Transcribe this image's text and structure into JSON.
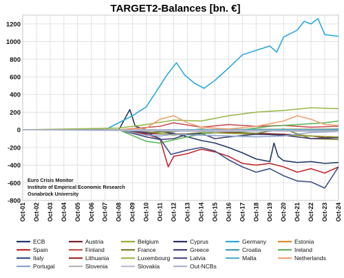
{
  "chart_data": {
    "type": "line",
    "title": "TARGET2-Balances [bn. €]",
    "xlabel": "",
    "ylabel": "",
    "ylim": [
      -800,
      1300
    ],
    "yticks": [
      -800,
      -600,
      -400,
      -200,
      0,
      200,
      400,
      600,
      800,
      1000,
      1200
    ],
    "x_ticks": [
      "Oct-01",
      "Oct-02",
      "Oct-03",
      "Oct-04",
      "Oct-05",
      "Oct-06",
      "Oct-07",
      "Oct-08",
      "Oct-09",
      "Oct-10",
      "Oct-11",
      "Oct-12",
      "Oct-13",
      "Oct-14",
      "Oct-15",
      "Oct-16",
      "Oct-17",
      "Oct-18",
      "Oct-19",
      "Oct-20",
      "Oct-21",
      "Oct-22",
      "Oct-23",
      "Oct-24"
    ],
    "x_years": [
      2001,
      2002,
      2003,
      2004,
      2005,
      2006,
      2007,
      2008,
      2009,
      2010,
      2011,
      2012,
      2013,
      2014,
      2015,
      2016,
      2017,
      2018,
      2019,
      2020,
      2021,
      2022,
      2023,
      2024
    ],
    "grid": true,
    "legend_position": "bottom",
    "annotation": [
      "Euro Crisis Monitor",
      "Institute of Empirical Economic Research",
      "Osnabrück University"
    ],
    "series": [
      {
        "name": "ECB",
        "color": "#1f3864",
        "x": [
          2001,
          2008,
          2008.8,
          2009.2,
          2010,
          2011,
          2012,
          2013,
          2014,
          2015,
          2016,
          2017,
          2018,
          2019,
          2019.3,
          2019.6,
          2020,
          2021,
          2022,
          2023,
          2024
        ],
        "y": [
          0,
          0,
          230,
          40,
          0,
          -20,
          -40,
          -80,
          -120,
          -150,
          -200,
          -260,
          -330,
          -360,
          -150,
          -300,
          -350,
          -370,
          -360,
          -380,
          -370
        ]
      },
      {
        "name": "Austria",
        "color": "#7b1f2b",
        "x": [
          2001,
          2008,
          2010,
          2012,
          2014,
          2016,
          2018,
          2020,
          2022,
          2023,
          2024
        ],
        "y": [
          0,
          0,
          -40,
          -50,
          -40,
          -30,
          -40,
          -50,
          -70,
          -90,
          -80
        ]
      },
      {
        "name": "Belgium",
        "color": "#9aab3a",
        "x": [
          2001,
          2008,
          2010,
          2012,
          2014,
          2016,
          2018,
          2020,
          2022,
          2024
        ],
        "y": [
          0,
          0,
          -20,
          -60,
          -30,
          -40,
          -50,
          -60,
          -70,
          -80
        ]
      },
      {
        "name": "Cyprus",
        "color": "#2e2e5e",
        "x": [
          2001,
          2008,
          2012,
          2016,
          2020,
          2024
        ],
        "y": [
          0,
          0,
          -10,
          -5,
          -10,
          -20
        ]
      },
      {
        "name": "Germany",
        "color": "#2aa7dc",
        "x": [
          2001,
          2007,
          2008,
          2009,
          2010,
          2011,
          2011.5,
          2012.2,
          2012.8,
          2013.5,
          2014.2,
          2015,
          2016,
          2017,
          2018,
          2019,
          2019.5,
          2020,
          2021,
          2021.5,
          2022,
          2022.5,
          2023,
          2024
        ],
        "y": [
          0,
          0,
          80,
          160,
          260,
          500,
          620,
          760,
          620,
          530,
          470,
          560,
          700,
          850,
          900,
          950,
          880,
          1050,
          1130,
          1230,
          1200,
          1260,
          1080,
          1060
        ]
      },
      {
        "name": "Estonia",
        "color": "#e08a2c",
        "x": [
          2001,
          2011,
          2016,
          2024
        ],
        "y": [
          0,
          0,
          5,
          10
        ]
      },
      {
        "name": "Spain",
        "color": "#c0282d",
        "x": [
          2001,
          2008,
          2010,
          2011,
          2011.6,
          2012,
          2013,
          2014,
          2015,
          2016,
          2017,
          2018,
          2019,
          2020,
          2021,
          2022,
          2023,
          2024
        ],
        "y": [
          0,
          0,
          -50,
          -100,
          -420,
          -300,
          -270,
          -220,
          -250,
          -300,
          -380,
          -400,
          -380,
          -420,
          -480,
          -440,
          -490,
          -420
        ]
      },
      {
        "name": "Finland",
        "color": "#c65050",
        "x": [
          2001,
          2008,
          2011,
          2012,
          2014,
          2016,
          2018,
          2020,
          2022,
          2024
        ],
        "y": [
          0,
          0,
          40,
          80,
          30,
          60,
          40,
          50,
          30,
          40
        ]
      },
      {
        "name": "France",
        "color": "#7d7d32",
        "x": [
          2001,
          2008,
          2010,
          2012,
          2014,
          2016,
          2018,
          2020,
          2022,
          2024
        ],
        "y": [
          0,
          0,
          -30,
          -20,
          10,
          -20,
          -40,
          10,
          -100,
          -110
        ]
      },
      {
        "name": "Greece",
        "color": "#3e3e6e",
        "x": [
          2001,
          2008,
          2010,
          2011,
          2012,
          2013,
          2014,
          2015,
          2016,
          2018,
          2020,
          2022,
          2024
        ],
        "y": [
          0,
          0,
          -80,
          -110,
          -100,
          -50,
          -40,
          -100,
          -80,
          -50,
          -60,
          -100,
          -90
        ]
      },
      {
        "name": "Croatia",
        "color": "#3a9fae",
        "x": [
          2023,
          2024
        ],
        "y": [
          0,
          10
        ]
      },
      {
        "name": "Ireland",
        "color": "#5fb65b",
        "x": [
          2001,
          2008,
          2010,
          2011,
          2013,
          2015,
          2017,
          2019,
          2021,
          2023,
          2024
        ],
        "y": [
          0,
          0,
          -130,
          -150,
          -80,
          -20,
          0,
          40,
          60,
          80,
          100
        ]
      },
      {
        "name": "Italy",
        "color": "#3b4f86",
        "x": [
          2001,
          2008,
          2010,
          2011,
          2011.8,
          2012,
          2013,
          2014,
          2015,
          2016,
          2017,
          2018,
          2019,
          2020,
          2021,
          2022,
          2023,
          2024
        ],
        "y": [
          0,
          0,
          -30,
          -100,
          -280,
          -270,
          -230,
          -200,
          -240,
          -340,
          -420,
          -480,
          -440,
          -520,
          -580,
          -590,
          -660,
          -420
        ]
      },
      {
        "name": "Lithuania",
        "color": "#a03030",
        "x": [
          2015,
          2024
        ],
        "y": [
          0,
          -10
        ]
      },
      {
        "name": "Luxembourg",
        "color": "#9bb84a",
        "x": [
          2001,
          2008,
          2010,
          2012,
          2014,
          2016,
          2018,
          2020,
          2022,
          2024
        ],
        "y": [
          0,
          20,
          60,
          110,
          100,
          160,
          200,
          220,
          250,
          240
        ]
      },
      {
        "name": "Latvia",
        "color": "#5a4a8a",
        "x": [
          2014,
          2024
        ],
        "y": [
          0,
          -5
        ]
      },
      {
        "name": "Malta",
        "color": "#4ab0d8",
        "x": [
          2008,
          2024
        ],
        "y": [
          0,
          5
        ]
      },
      {
        "name": "Netherlands",
        "color": "#f0a070",
        "x": [
          2001,
          2008,
          2010,
          2011,
          2012,
          2013,
          2014,
          2016,
          2018,
          2020,
          2021,
          2022,
          2023,
          2024
        ],
        "y": [
          0,
          0,
          20,
          120,
          160,
          80,
          30,
          10,
          40,
          100,
          160,
          120,
          60,
          50
        ]
      },
      {
        "name": "Portugal",
        "color": "#8aa2c8",
        "x": [
          2001,
          2008,
          2010,
          2011,
          2012,
          2014,
          2016,
          2018,
          2020,
          2022,
          2024
        ],
        "y": [
          0,
          0,
          -60,
          -70,
          -50,
          -60,
          -70,
          -80,
          -70,
          -30,
          -20
        ]
      },
      {
        "name": "Slovenia",
        "color": "#b5b5b5",
        "x": [
          2007,
          2024
        ],
        "y": [
          0,
          -10
        ]
      },
      {
        "name": "Slovakia",
        "color": "#c7b7d8",
        "x": [
          2009,
          2024
        ],
        "y": [
          0,
          -20
        ]
      },
      {
        "name": "Out-NCBs",
        "color": "#aab4c8",
        "x": [
          2001,
          2010,
          2015,
          2020,
          2024
        ],
        "y": [
          0,
          -10,
          -20,
          -10,
          -20
        ]
      }
    ]
  }
}
